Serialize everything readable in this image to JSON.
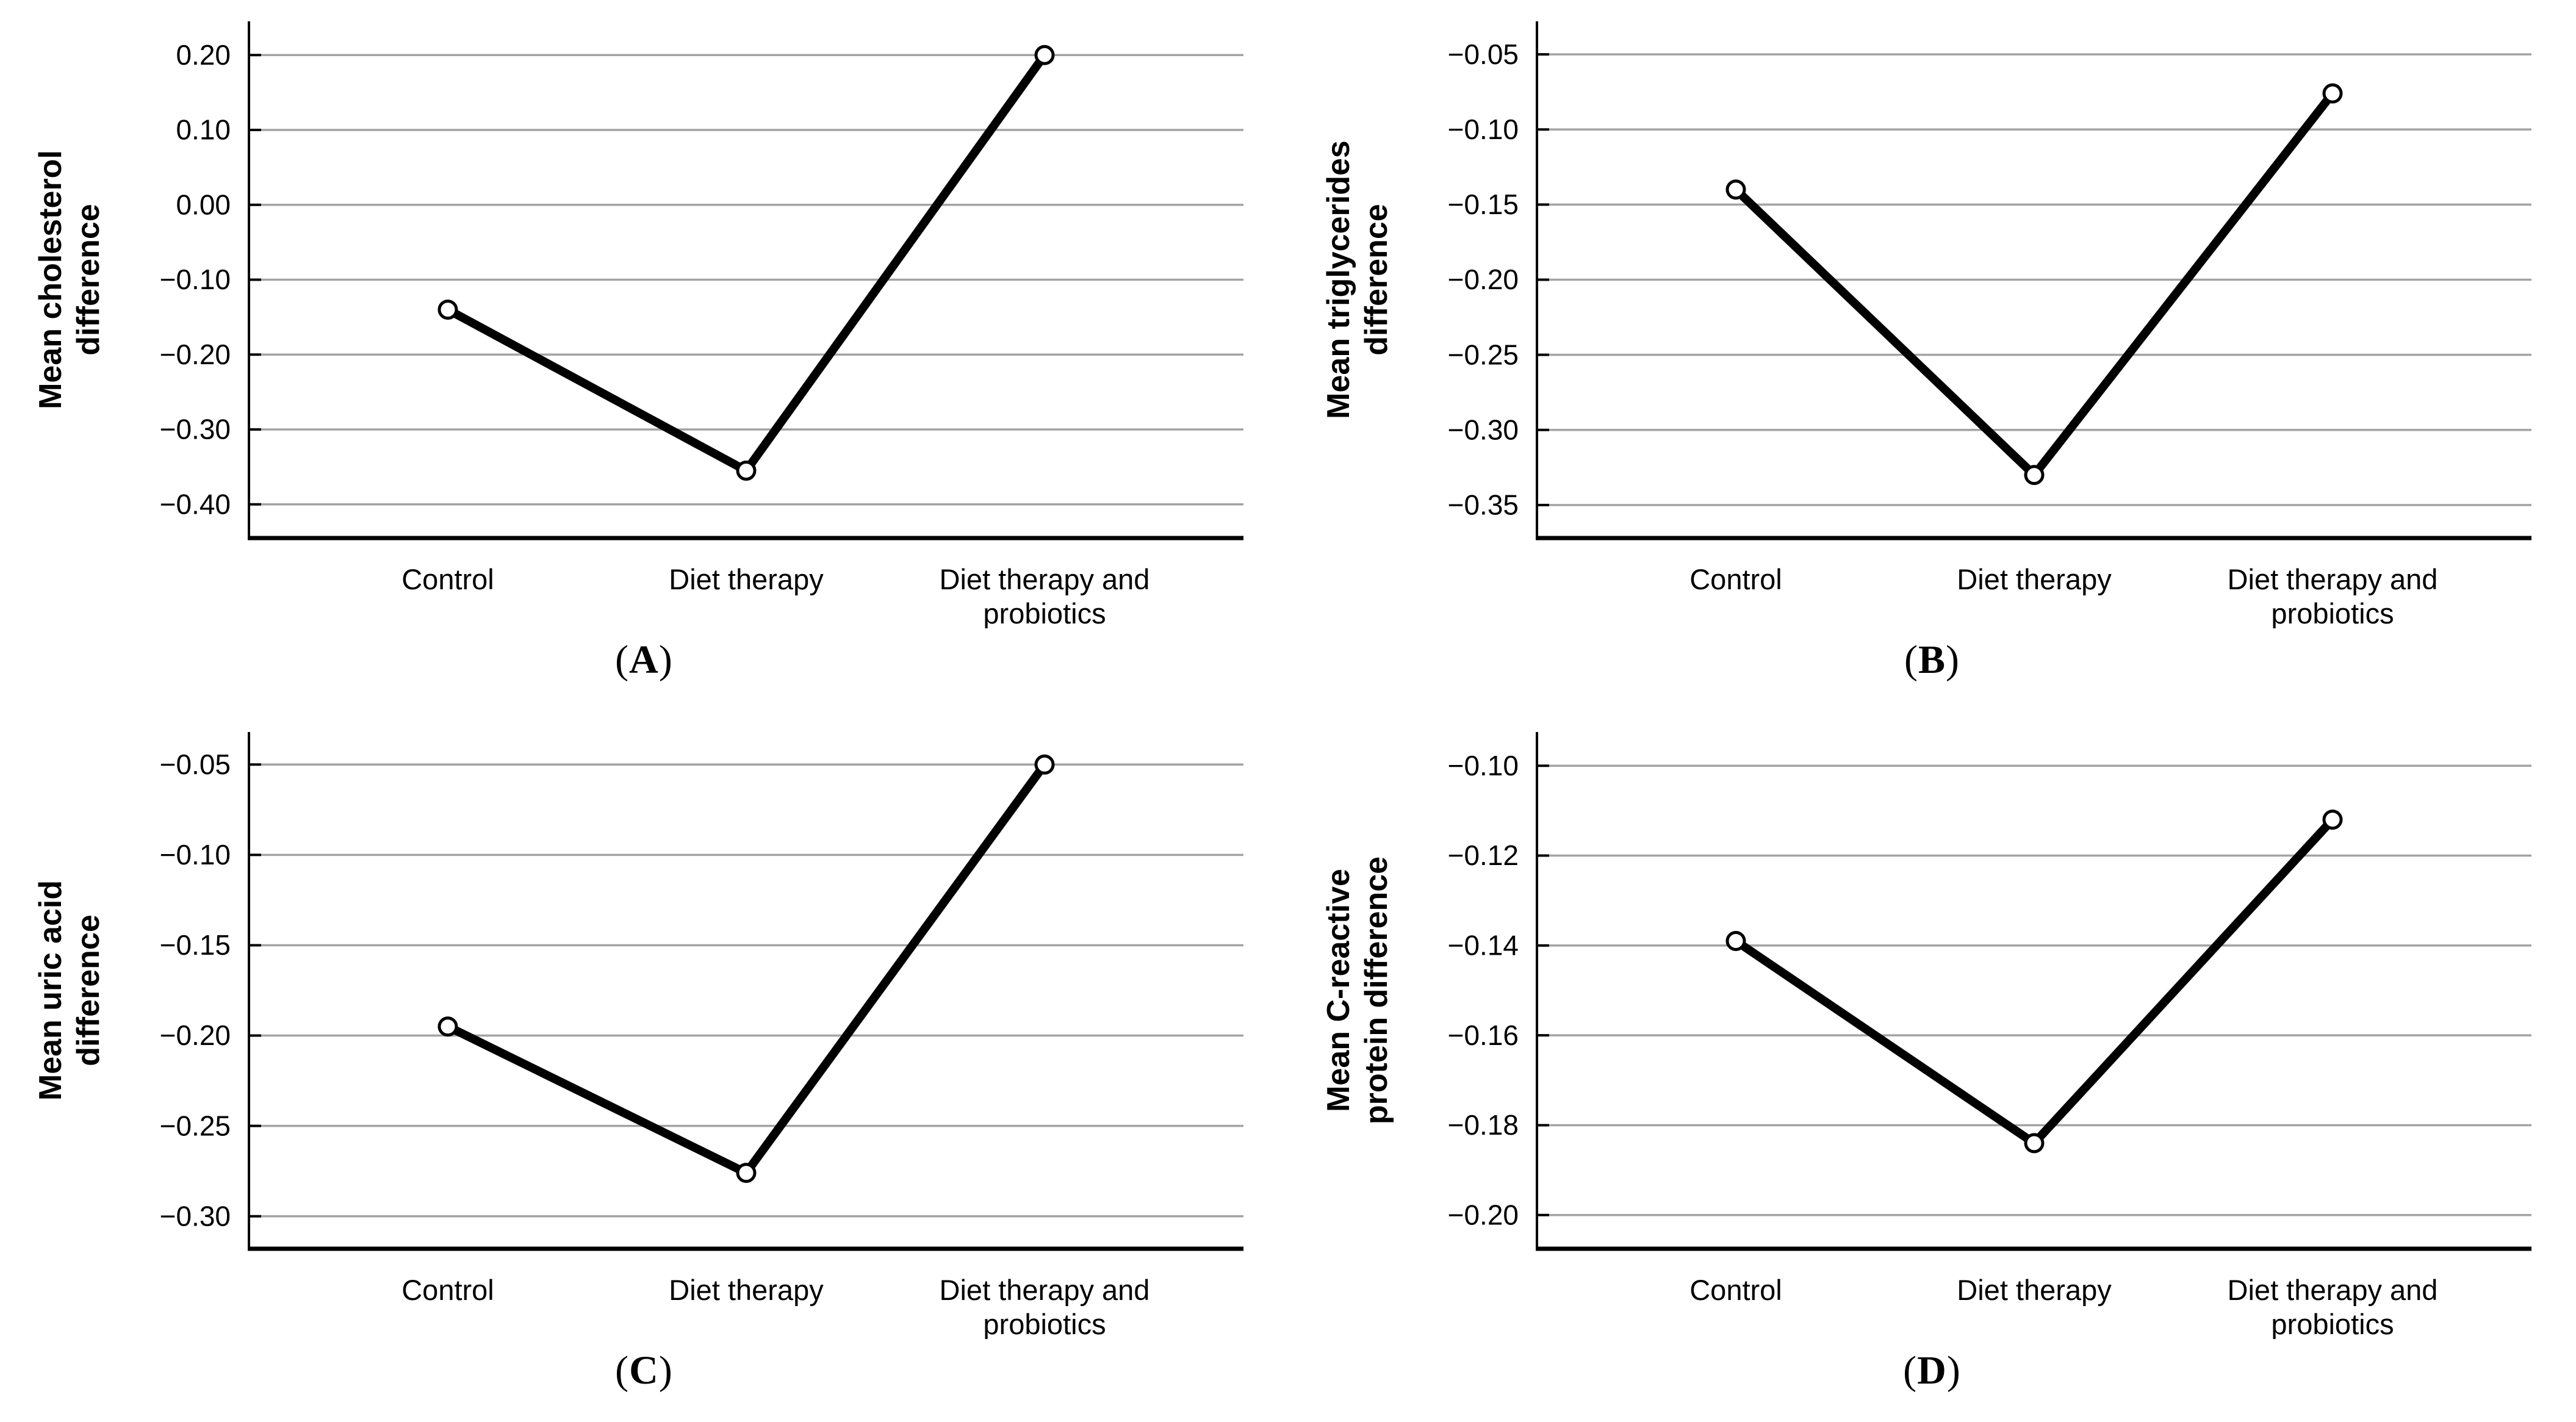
{
  "figure": {
    "panels": [
      {
        "caption": {
          "open": "(",
          "letter": "A",
          "close": ")"
        }
      },
      {
        "caption": {
          "open": "(",
          "letter": "B",
          "close": ")"
        }
      },
      {
        "caption": {
          "open": "(",
          "letter": "C",
          "close": ")"
        }
      },
      {
        "caption": {
          "open": "(",
          "letter": "D",
          "close": ")"
        }
      }
    ]
  },
  "colors": {
    "line": "#000000",
    "marker_fill": "#ffffff",
    "grid": "#a3a3a3",
    "axis": "#000000",
    "text": "#000000"
  },
  "chart_data": [
    {
      "type": "line",
      "panel": "A",
      "title": "",
      "xlabel": "",
      "ylabel": "Mean cholesterol difference",
      "ylabel_lines": [
        "Mean cholesterol",
        "difference"
      ],
      "categories": [
        "Control",
        "Diet therapy",
        "Diet therapy and probiotics"
      ],
      "category_lines": [
        [
          "Control"
        ],
        [
          "Diet therapy"
        ],
        [
          "Diet therapy and",
          "probiotics"
        ]
      ],
      "values": [
        -0.14,
        -0.355,
        0.2
      ],
      "yticks": [
        0.2,
        0.1,
        0.0,
        -0.1,
        -0.2,
        -0.3,
        -0.4
      ],
      "ytick_labels": [
        "0.20",
        "0.10",
        "0.00",
        "−0.10",
        "−0.20",
        "−0.30",
        "−0.40"
      ],
      "ylim": [
        -0.445,
        0.245
      ],
      "grid": true,
      "legend": "none",
      "marker": "open-circle"
    },
    {
      "type": "line",
      "panel": "B",
      "title": "",
      "xlabel": "",
      "ylabel": "Mean triglycerides difference",
      "ylabel_lines": [
        "Mean triglycerides",
        "difference"
      ],
      "categories": [
        "Control",
        "Diet therapy",
        "Diet therapy and probiotics"
      ],
      "category_lines": [
        [
          "Control"
        ],
        [
          "Diet therapy"
        ],
        [
          "Diet therapy and",
          "probiotics"
        ]
      ],
      "values": [
        -0.14,
        -0.33,
        -0.076
      ],
      "yticks": [
        -0.05,
        -0.1,
        -0.15,
        -0.2,
        -0.25,
        -0.3,
        -0.35
      ],
      "ytick_labels": [
        "−0.05",
        "−0.10",
        "−0.15",
        "−0.20",
        "−0.25",
        "−0.30",
        "−0.35"
      ],
      "ylim": [
        -0.372,
        -0.028
      ],
      "grid": true,
      "legend": "none",
      "marker": "open-circle"
    },
    {
      "type": "line",
      "panel": "C",
      "title": "",
      "xlabel": "",
      "ylabel": "Mean uric acid difference",
      "ylabel_lines": [
        "Mean uric acid",
        "difference"
      ],
      "categories": [
        "Control",
        "Diet therapy",
        "Diet therapy and probiotics"
      ],
      "category_lines": [
        [
          "Control"
        ],
        [
          "Diet therapy"
        ],
        [
          "Diet therapy and",
          "probiotics"
        ]
      ],
      "values": [
        -0.195,
        -0.276,
        -0.05
      ],
      "yticks": [
        -0.05,
        -0.1,
        -0.15,
        -0.2,
        -0.25,
        -0.3
      ],
      "ytick_labels": [
        "−0.05",
        "−0.10",
        "−0.15",
        "−0.20",
        "−0.25",
        "−0.30"
      ],
      "ylim": [
        -0.318,
        -0.032
      ],
      "grid": true,
      "legend": "none",
      "marker": "open-circle"
    },
    {
      "type": "line",
      "panel": "D",
      "title": "",
      "xlabel": "",
      "ylabel": "Mean C-reactive protein difference",
      "ylabel_lines": [
        "Mean C-reactive",
        "protein difference"
      ],
      "categories": [
        "Control",
        "Diet therapy",
        "Diet therapy and probiotics"
      ],
      "category_lines": [
        [
          "Control"
        ],
        [
          "Diet therapy"
        ],
        [
          "Diet therapy and",
          "probiotics"
        ]
      ],
      "values": [
        -0.139,
        -0.184,
        -0.112
      ],
      "yticks": [
        -0.1,
        -0.12,
        -0.14,
        -0.16,
        -0.18,
        -0.2
      ],
      "ytick_labels": [
        "−0.10",
        "−0.12",
        "−0.14",
        "−0.16",
        "−0.18",
        "−0.20"
      ],
      "ylim": [
        -0.2075,
        -0.0925
      ],
      "grid": true,
      "legend": "none",
      "marker": "open-circle"
    }
  ]
}
